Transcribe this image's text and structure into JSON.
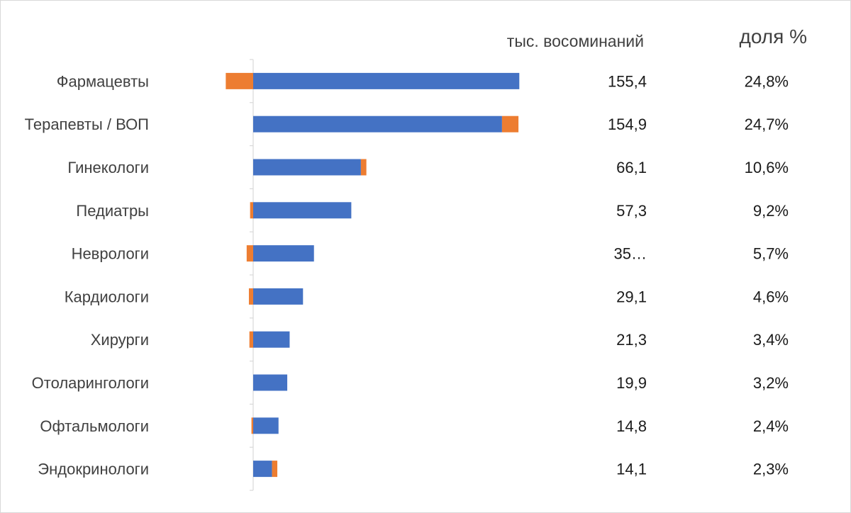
{
  "chart_data": {
    "type": "bar",
    "orientation": "horizontal",
    "stacked": true,
    "categories": [
      "Фармацевты",
      "Терапевты / ВОП",
      "Гинекологи",
      "Педиатры",
      "Неврологи",
      "Кардиологи",
      "Хирурги",
      "Отоларингологи",
      "Офтальмологи",
      "Эндокринологи"
    ],
    "series": [
      {
        "values": [
          155.4,
          145.3,
          62.9,
          57.3,
          35.5,
          29.1,
          21.3,
          19.9,
          14.8,
          11.0
        ],
        "color": "#4472C4"
      },
      {
        "values": [
          -16.0,
          9.6,
          3.2,
          -1.8,
          -3.8,
          -2.5,
          -2.2,
          0,
          -1.0,
          3.1
        ],
        "color": "#ED7D31"
      }
    ],
    "value_labels": [
      "155,4",
      "154,9",
      "66,1",
      "57,3",
      "35…",
      "29,1",
      "21,3",
      "19,9",
      "14,8",
      "14,1"
    ],
    "share_labels": [
      "24,8%",
      "24,7%",
      "10,6%",
      "9,2%",
      "5,7%",
      "4,6%",
      "3,4%",
      "3,2%",
      "2,4%",
      "2,3%"
    ],
    "headers": {
      "values": "тыс. восоминаний",
      "shares": "доля %"
    },
    "xlim": [
      -20,
      160
    ],
    "legend": "none",
    "grid": false
  }
}
